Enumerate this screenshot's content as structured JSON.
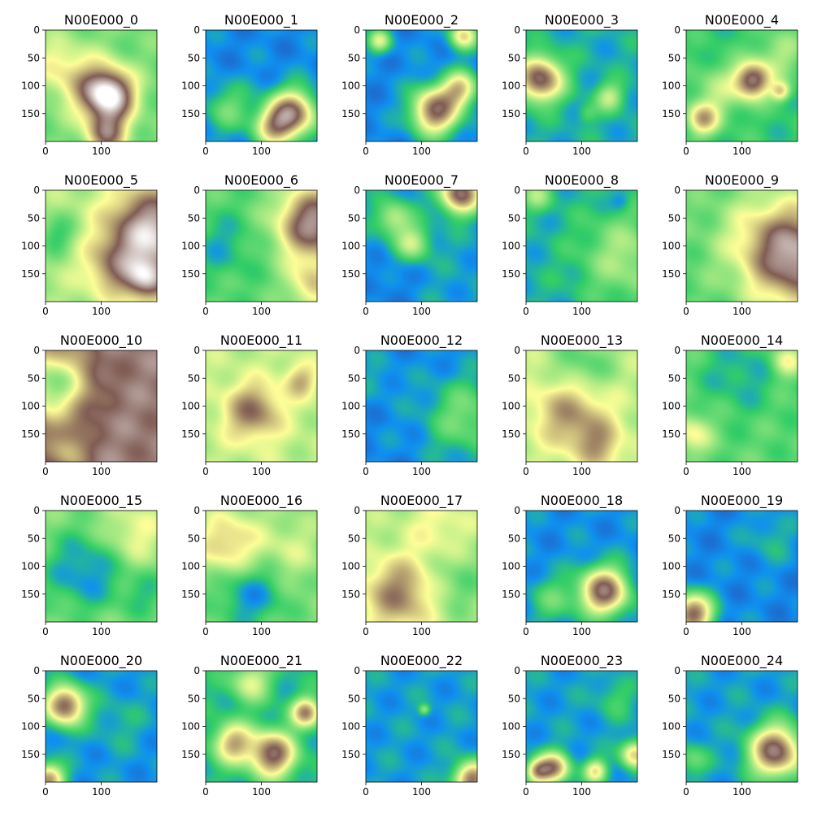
{
  "figure": {
    "rows": 5,
    "cols": 5,
    "colormap": "terrain",
    "colormap_stops": [
      "#333399",
      "#0f90f0",
      "#32cd67",
      "#fefe98",
      "#805c54",
      "#ffffff"
    ]
  },
  "chart_data": [
    {
      "type": "heatmap",
      "title": "N00E000_0",
      "xticks": [
        0,
        100
      ],
      "yticks": [
        0,
        50,
        100,
        150
      ],
      "xlim": [
        0,
        200
      ],
      "ylim": [
        200,
        0
      ],
      "base": 0.33,
      "features": [
        {
          "cx": 115,
          "cy": 118,
          "r": 30,
          "a": 0.62
        },
        {
          "cx": 80,
          "cy": 100,
          "r": 38,
          "a": 0.22
        },
        {
          "cx": 20,
          "cy": 60,
          "r": 35,
          "a": 0.15
        },
        {
          "cx": 110,
          "cy": 185,
          "r": 25,
          "a": 0.4
        }
      ]
    },
    {
      "type": "heatmap",
      "title": "N00E000_1",
      "xticks": [
        0,
        100
      ],
      "yticks": [
        0,
        50,
        100,
        150
      ],
      "xlim": [
        0,
        200
      ],
      "ylim": [
        200,
        0
      ],
      "base": 0.14,
      "features": [
        {
          "cx": 155,
          "cy": 150,
          "r": 30,
          "a": 0.6
        },
        {
          "cx": 120,
          "cy": 175,
          "r": 25,
          "a": 0.35
        },
        {
          "cx": 40,
          "cy": 140,
          "r": 30,
          "a": 0.18
        }
      ]
    },
    {
      "type": "heatmap",
      "title": "N00E000_2",
      "xticks": [
        0,
        100
      ],
      "yticks": [
        0,
        50,
        100,
        150
      ],
      "xlim": [
        0,
        200
      ],
      "ylim": [
        200,
        0
      ],
      "base": 0.14,
      "features": [
        {
          "cx": 125,
          "cy": 145,
          "r": 30,
          "a": 0.6
        },
        {
          "cx": 170,
          "cy": 105,
          "r": 22,
          "a": 0.4
        },
        {
          "cx": 25,
          "cy": 20,
          "r": 15,
          "a": 0.3
        },
        {
          "cx": 175,
          "cy": 10,
          "r": 18,
          "a": 0.4
        }
      ]
    },
    {
      "type": "heatmap",
      "title": "N00E000_3",
      "xticks": [
        0,
        100
      ],
      "yticks": [
        0,
        50,
        100,
        150
      ],
      "xlim": [
        0,
        200
      ],
      "ylim": [
        200,
        0
      ],
      "base": 0.2,
      "features": [
        {
          "cx": 25,
          "cy": 88,
          "r": 28,
          "a": 0.58
        },
        {
          "cx": 150,
          "cy": 120,
          "r": 18,
          "a": 0.22
        },
        {
          "cx": 110,
          "cy": 150,
          "r": 12,
          "a": 0.1
        }
      ]
    },
    {
      "type": "heatmap",
      "title": "N00E000_4",
      "xticks": [
        0,
        100
      ],
      "yticks": [
        0,
        50,
        100,
        150
      ],
      "xlim": [
        0,
        200
      ],
      "ylim": [
        200,
        0
      ],
      "base": 0.25,
      "features": [
        {
          "cx": 120,
          "cy": 90,
          "r": 22,
          "a": 0.55
        },
        {
          "cx": 170,
          "cy": 110,
          "r": 12,
          "a": 0.3
        },
        {
          "cx": 30,
          "cy": 160,
          "r": 20,
          "a": 0.35
        },
        {
          "cx": 60,
          "cy": 110,
          "r": 35,
          "a": 0.15
        },
        {
          "cx": 170,
          "cy": 40,
          "r": 30,
          "a": 0.15
        }
      ]
    },
    {
      "type": "heatmap",
      "title": "N00E000_5",
      "xticks": [
        0,
        100
      ],
      "yticks": [
        0,
        50,
        100,
        150
      ],
      "xlim": [
        0,
        200
      ],
      "ylim": [
        200,
        0
      ],
      "base": 0.4,
      "features": [
        {
          "cx": 190,
          "cy": 80,
          "r": 55,
          "a": 0.55
        },
        {
          "cx": 180,
          "cy": 160,
          "r": 25,
          "a": 0.35
        },
        {
          "cx": 120,
          "cy": 140,
          "r": 35,
          "a": 0.2
        },
        {
          "cx": 20,
          "cy": 80,
          "r": 25,
          "a": -0.15
        }
      ]
    },
    {
      "type": "heatmap",
      "title": "N00E000_6",
      "xticks": [
        0,
        100
      ],
      "yticks": [
        0,
        50,
        100,
        150
      ],
      "xlim": [
        0,
        200
      ],
      "ylim": [
        200,
        0
      ],
      "base": 0.3,
      "features": [
        {
          "cx": 195,
          "cy": 60,
          "r": 45,
          "a": 0.55
        },
        {
          "cx": 190,
          "cy": 170,
          "r": 30,
          "a": 0.25
        },
        {
          "cx": 30,
          "cy": 100,
          "r": 40,
          "a": -0.1
        }
      ]
    },
    {
      "type": "heatmap",
      "title": "N00E000_7",
      "xticks": [
        0,
        100
      ],
      "yticks": [
        0,
        50,
        100,
        150
      ],
      "xlim": [
        0,
        200
      ],
      "ylim": [
        200,
        0
      ],
      "base": 0.18,
      "features": [
        {
          "cx": 170,
          "cy": 5,
          "r": 25,
          "a": 0.6
        },
        {
          "cx": 50,
          "cy": 50,
          "r": 22,
          "a": 0.25
        },
        {
          "cx": 85,
          "cy": 95,
          "r": 22,
          "a": 0.25
        },
        {
          "cx": 40,
          "cy": 170,
          "r": 40,
          "a": -0.06
        }
      ]
    },
    {
      "type": "heatmap",
      "title": "N00E000_8",
      "xticks": [
        0,
        100
      ],
      "yticks": [
        0,
        50,
        100,
        150
      ],
      "xlim": [
        0,
        200
      ],
      "ylim": [
        200,
        0
      ],
      "base": 0.2,
      "features": [
        {
          "cx": 180,
          "cy": 120,
          "r": 60,
          "a": 0.2
        },
        {
          "cx": 20,
          "cy": 10,
          "r": 20,
          "a": 0.18
        },
        {
          "cx": 170,
          "cy": 20,
          "r": 12,
          "a": -0.1
        }
      ]
    },
    {
      "type": "heatmap",
      "title": "N00E000_9",
      "xticks": [
        0,
        100
      ],
      "yticks": [
        0,
        50,
        100,
        150
      ],
      "xlim": [
        0,
        200
      ],
      "ylim": [
        200,
        0
      ],
      "base": 0.3,
      "features": [
        {
          "cx": 200,
          "cy": 120,
          "r": 60,
          "a": 0.55
        },
        {
          "cx": 130,
          "cy": 80,
          "r": 60,
          "a": 0.12
        }
      ]
    },
    {
      "type": "heatmap",
      "title": "N00E000_10",
      "xticks": [
        0,
        100
      ],
      "yticks": [
        0,
        50,
        100,
        150
      ],
      "xlim": [
        0,
        200
      ],
      "ylim": [
        200,
        0
      ],
      "base": 0.8,
      "features": [
        {
          "cx": 10,
          "cy": 60,
          "r": 45,
          "a": -0.45
        },
        {
          "cx": 40,
          "cy": 180,
          "r": 25,
          "a": -0.2
        }
      ]
    },
    {
      "type": "heatmap",
      "title": "N00E000_11",
      "xticks": [
        0,
        100
      ],
      "yticks": [
        0,
        50,
        100,
        150
      ],
      "xlim": [
        0,
        200
      ],
      "ylim": [
        200,
        0
      ],
      "base": 0.42,
      "features": [
        {
          "cx": 85,
          "cy": 110,
          "r": 35,
          "a": 0.3
        },
        {
          "cx": 170,
          "cy": 55,
          "r": 20,
          "a": 0.2
        }
      ]
    },
    {
      "type": "heatmap",
      "title": "N00E000_12",
      "xticks": [
        0,
        100
      ],
      "yticks": [
        0,
        50,
        100,
        150
      ],
      "xlim": [
        0,
        200
      ],
      "ylim": [
        200,
        0
      ],
      "base": 0.14,
      "features": [
        {
          "cx": 180,
          "cy": 120,
          "r": 50,
          "a": 0.2
        },
        {
          "cx": 20,
          "cy": 50,
          "r": 30,
          "a": 0.05
        }
      ]
    },
    {
      "type": "heatmap",
      "title": "N00E000_13",
      "xticks": [
        0,
        100
      ],
      "yticks": [
        0,
        50,
        100,
        150
      ],
      "xlim": [
        0,
        200
      ],
      "ylim": [
        200,
        0
      ],
      "base": 0.42,
      "features": [
        {
          "cx": 80,
          "cy": 110,
          "r": 45,
          "a": 0.25
        },
        {
          "cx": 130,
          "cy": 170,
          "r": 30,
          "a": 0.2
        },
        {
          "cx": 100,
          "cy": 30,
          "r": 40,
          "a": -0.15
        }
      ]
    },
    {
      "type": "heatmap",
      "title": "N00E000_14",
      "xticks": [
        0,
        100
      ],
      "yticks": [
        0,
        50,
        100,
        150
      ],
      "xlim": [
        0,
        200
      ],
      "ylim": [
        200,
        0
      ],
      "base": 0.3,
      "features": [
        {
          "cx": 10,
          "cy": 150,
          "r": 25,
          "a": 0.2
        },
        {
          "cx": 100,
          "cy": 40,
          "r": 50,
          "a": -0.1
        },
        {
          "cx": 180,
          "cy": 20,
          "r": 20,
          "a": 0.2
        }
      ]
    },
    {
      "type": "heatmap",
      "title": "N00E000_15",
      "xticks": [
        0,
        100
      ],
      "yticks": [
        0,
        50,
        100,
        150
      ],
      "xlim": [
        0,
        200
      ],
      "ylim": [
        200,
        0
      ],
      "base": 0.35,
      "features": [
        {
          "cx": 70,
          "cy": 110,
          "r": 50,
          "a": -0.2
        },
        {
          "cx": 160,
          "cy": 40,
          "r": 40,
          "a": 0.15
        },
        {
          "cx": 180,
          "cy": 150,
          "r": 30,
          "a": -0.1
        }
      ]
    },
    {
      "type": "heatmap",
      "title": "N00E000_16",
      "xticks": [
        0,
        100
      ],
      "yticks": [
        0,
        50,
        100,
        150
      ],
      "xlim": [
        0,
        200
      ],
      "ylim": [
        200,
        0
      ],
      "base": 0.35,
      "features": [
        {
          "cx": 40,
          "cy": 60,
          "r": 40,
          "a": 0.25
        },
        {
          "cx": 80,
          "cy": 150,
          "r": 45,
          "a": -0.2
        },
        {
          "cx": 150,
          "cy": 70,
          "r": 40,
          "a": 0.1
        }
      ]
    },
    {
      "type": "heatmap",
      "title": "N00E000_17",
      "xticks": [
        0,
        100
      ],
      "yticks": [
        0,
        50,
        100,
        150
      ],
      "xlim": [
        0,
        200
      ],
      "ylim": [
        200,
        0
      ],
      "base": 0.4,
      "features": [
        {
          "cx": 60,
          "cy": 150,
          "r": 45,
          "a": 0.3
        },
        {
          "cx": 160,
          "cy": 130,
          "r": 40,
          "a": -0.1
        },
        {
          "cx": 130,
          "cy": 30,
          "r": 40,
          "a": 0.1
        }
      ]
    },
    {
      "type": "heatmap",
      "title": "N00E000_18",
      "xticks": [
        0,
        100
      ],
      "yticks": [
        0,
        50,
        100,
        150
      ],
      "xlim": [
        0,
        200
      ],
      "ylim": [
        200,
        0
      ],
      "base": 0.15,
      "features": [
        {
          "cx": 140,
          "cy": 145,
          "r": 30,
          "a": 0.62
        },
        {
          "cx": 50,
          "cy": 160,
          "r": 30,
          "a": 0.15
        }
      ]
    },
    {
      "type": "heatmap",
      "title": "N00E000_19",
      "xticks": [
        0,
        100
      ],
      "yticks": [
        0,
        50,
        100,
        150
      ],
      "xlim": [
        0,
        200
      ],
      "ylim": [
        200,
        0
      ],
      "base": 0.14,
      "features": [
        {
          "cx": 12,
          "cy": 185,
          "r": 25,
          "a": 0.6
        },
        {
          "cx": 150,
          "cy": 50,
          "r": 30,
          "a": 0.08
        }
      ]
    },
    {
      "type": "heatmap",
      "title": "N00E000_20",
      "xticks": [
        0,
        100
      ],
      "yticks": [
        0,
        50,
        100,
        150
      ],
      "xlim": [
        0,
        200
      ],
      "ylim": [
        200,
        0
      ],
      "base": 0.16,
      "features": [
        {
          "cx": 35,
          "cy": 62,
          "r": 25,
          "a": 0.6
        },
        {
          "cx": 5,
          "cy": 195,
          "r": 20,
          "a": 0.5
        },
        {
          "cx": 130,
          "cy": 90,
          "r": 35,
          "a": 0.06
        }
      ]
    },
    {
      "type": "heatmap",
      "title": "N00E000_21",
      "xticks": [
        0,
        100
      ],
      "yticks": [
        0,
        50,
        100,
        150
      ],
      "xlim": [
        0,
        200
      ],
      "ylim": [
        200,
        0
      ],
      "base": 0.22,
      "features": [
        {
          "cx": 120,
          "cy": 150,
          "r": 28,
          "a": 0.55
        },
        {
          "cx": 180,
          "cy": 75,
          "r": 18,
          "a": 0.45
        },
        {
          "cx": 50,
          "cy": 130,
          "r": 25,
          "a": 0.4
        },
        {
          "cx": 80,
          "cy": 20,
          "r": 25,
          "a": 0.25
        }
      ]
    },
    {
      "type": "heatmap",
      "title": "N00E000_22",
      "xticks": [
        0,
        100
      ],
      "yticks": [
        0,
        50,
        100,
        150
      ],
      "xlim": [
        0,
        200
      ],
      "ylim": [
        200,
        0
      ],
      "base": 0.17,
      "features": [
        {
          "cx": 190,
          "cy": 195,
          "r": 22,
          "a": 0.55
        },
        {
          "cx": 105,
          "cy": 70,
          "r": 7,
          "a": 0.2
        }
      ]
    },
    {
      "type": "heatmap",
      "title": "N00E000_23",
      "xticks": [
        0,
        100
      ],
      "yticks": [
        0,
        50,
        100,
        150
      ],
      "xlim": [
        0,
        200
      ],
      "ylim": [
        200,
        0
      ],
      "base": 0.17,
      "features": [
        {
          "cx": 50,
          "cy": 175,
          "r": 20,
          "a": 0.5
        },
        {
          "cx": 20,
          "cy": 180,
          "r": 15,
          "a": 0.4
        },
        {
          "cx": 125,
          "cy": 180,
          "r": 15,
          "a": 0.35
        },
        {
          "cx": 195,
          "cy": 150,
          "r": 18,
          "a": 0.4
        },
        {
          "cx": 160,
          "cy": 50,
          "r": 25,
          "a": 0.1
        }
      ]
    },
    {
      "type": "heatmap",
      "title": "N00E000_24",
      "xticks": [
        0,
        100
      ],
      "yticks": [
        0,
        50,
        100,
        150
      ],
      "xlim": [
        0,
        200
      ],
      "ylim": [
        200,
        0
      ],
      "base": 0.17,
      "features": [
        {
          "cx": 160,
          "cy": 145,
          "r": 32,
          "a": 0.62
        },
        {
          "cx": 10,
          "cy": 160,
          "r": 20,
          "a": 0.15
        }
      ]
    }
  ]
}
